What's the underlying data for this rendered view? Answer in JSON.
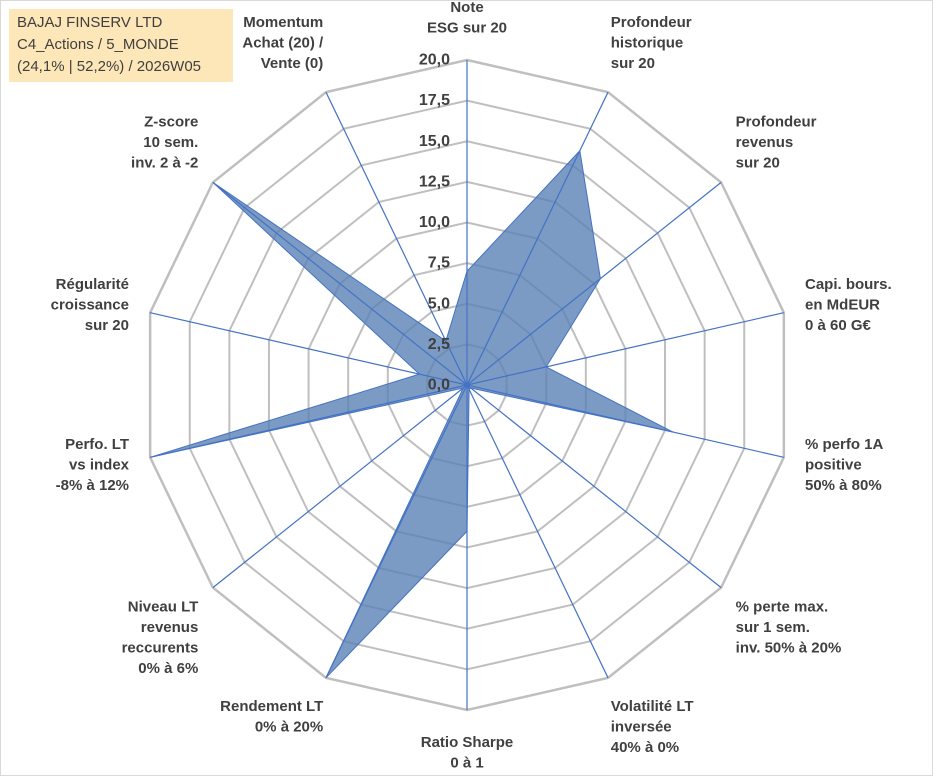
{
  "info_box": {
    "company": "BAJAJ FINSERV LTD",
    "portfolio": "C4_Actions / 5_MONDE",
    "stats": "(24,1% | 52,2%) / 2026W05"
  },
  "colors": {
    "series_fill": "#5a82b6",
    "series_stroke": "#4472c4",
    "grid": "#bfbfbf",
    "spoke": "#4472c4",
    "label": "#404040",
    "info_bg": "#fde7b8"
  },
  "chart_data": {
    "type": "radar",
    "title": "",
    "rmin": 0,
    "rmax": 20,
    "tick_step": 2.5,
    "tick_labels": [
      "0,0",
      "2,5",
      "5,0",
      "7,5",
      "10,0",
      "12,5",
      "15,0",
      "17,5",
      "20,0"
    ],
    "axes": [
      {
        "label": [
          "Note",
          "ESG sur 20"
        ],
        "value": 7
      },
      {
        "label": [
          "Profondeur",
          "historique",
          "sur 20"
        ],
        "value": 16
      },
      {
        "label": [
          "Profondeur",
          "revenus",
          "sur 20"
        ],
        "value": 10.5
      },
      {
        "label": [
          "Capi. bours.",
          "en MdEUR",
          "0 à 60 G€"
        ],
        "value": 5
      },
      {
        "label": [
          "% perfo 1A",
          "positive",
          "50% à 80%"
        ],
        "value": 13
      },
      {
        "label": [
          "% perte max.",
          "sur 1 sem.",
          "inv. 50% à 20%"
        ],
        "value": 0.3
      },
      {
        "label": [
          "Volatilité LT",
          "inversée",
          "40% à 0%"
        ],
        "value": 0.3
      },
      {
        "label": [
          "Ratio Sharpe",
          "0 à 1"
        ],
        "value": 9
      },
      {
        "label": [
          "Rendement LT",
          "0% à 20%"
        ],
        "value": 20
      },
      {
        "label": [
          "Niveau LT",
          "revenus",
          "reccurents",
          "0% à 6%"
        ],
        "value": 0.3
      },
      {
        "label": [
          "Perfo. LT",
          "vs index",
          "-8% à 12%"
        ],
        "value": 20
      },
      {
        "label": [
          "Régularité",
          "croissance",
          "sur 20"
        ],
        "value": 3
      },
      {
        "label": [
          "Z-score",
          "10 sem.",
          "inv. 2 à -2"
        ],
        "value": 20
      },
      {
        "label": [
          "Momentum",
          "Achat (20) /",
          "Vente (0)"
        ],
        "value": 3
      }
    ]
  }
}
